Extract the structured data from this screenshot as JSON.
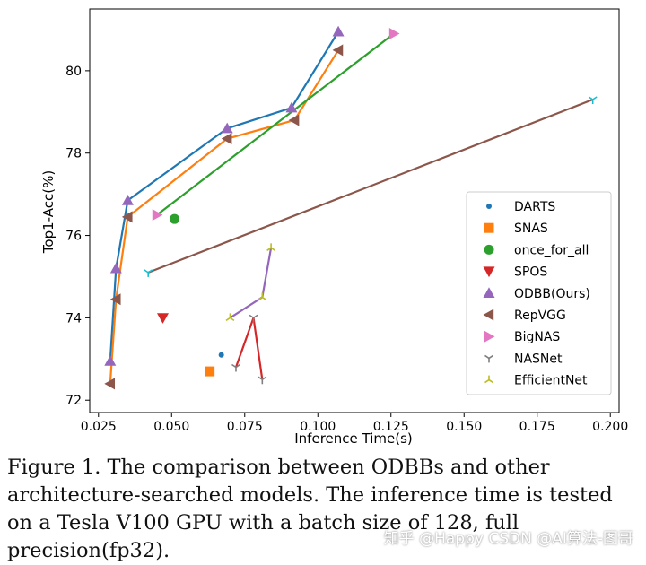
{
  "chart_data": {
    "type": "line",
    "title": "",
    "xlabel": "Inference Time(s)",
    "ylabel": "Top1-Acc(%)",
    "xlim": [
      0.022,
      0.203
    ],
    "ylim": [
      71.7,
      81.5
    ],
    "xticks": [
      0.025,
      0.05,
      0.075,
      0.1,
      0.125,
      0.15,
      0.175,
      0.2
    ],
    "xtick_labels": [
      "0.025",
      "0.050",
      "0.075",
      "0.100",
      "0.125",
      "0.150",
      "0.175",
      "0.200"
    ],
    "yticks": [
      72,
      74,
      76,
      78,
      80
    ],
    "ytick_labels": [
      "72",
      "74",
      "76",
      "78",
      "80"
    ],
    "grid": false,
    "legend_position": "bottom-right",
    "series": [
      {
        "name": "DARTS",
        "color": "#1f77b4",
        "marker": "point",
        "line": false,
        "points": [
          [
            0.067,
            73.1
          ]
        ]
      },
      {
        "name": "SNAS",
        "color": "#ff7f0e",
        "marker": "square",
        "line": false,
        "points": [
          [
            0.063,
            72.7
          ]
        ]
      },
      {
        "name": "once_for_all",
        "color": "#2ca02c",
        "marker": "circle",
        "line": false,
        "points": [
          [
            0.051,
            76.4
          ]
        ]
      },
      {
        "name": "SPOS",
        "color": "#d62728",
        "marker": "triangle_down",
        "line": false,
        "points": [
          [
            0.047,
            74.0
          ]
        ]
      },
      {
        "name": "ODBB(Ours)",
        "color": "#9467bd",
        "marker": "triangle_up",
        "line": false,
        "points": [
          [
            0.029,
            72.95
          ],
          [
            0.031,
            75.2
          ],
          [
            0.035,
            76.85
          ],
          [
            0.069,
            78.6
          ],
          [
            0.091,
            79.1
          ],
          [
            0.107,
            80.95
          ]
        ]
      },
      {
        "name": "RepVGG",
        "color": "#8c564b",
        "marker": "triangle_left",
        "line": false,
        "points": [
          [
            0.029,
            72.4
          ],
          [
            0.031,
            74.45
          ],
          [
            0.035,
            76.45
          ],
          [
            0.069,
            78.35
          ],
          [
            0.092,
            78.8
          ],
          [
            0.107,
            80.5
          ]
        ]
      },
      {
        "name": "BigNAS",
        "color": "#e377c2",
        "marker": "triangle_right",
        "line": false,
        "points": [
          [
            0.045,
            76.5
          ],
          [
            0.126,
            80.9
          ]
        ]
      },
      {
        "name": "NASNet",
        "color": "#7f7f7f",
        "marker": "tri_down",
        "line": false,
        "points": [
          [
            0.072,
            72.8
          ],
          [
            0.078,
            74.0
          ],
          [
            0.081,
            72.5
          ]
        ]
      },
      {
        "name": "EfficientNet",
        "color": "#bcbd22",
        "marker": "tri_up",
        "line": false,
        "points": [
          [
            0.07,
            74.0
          ],
          [
            0.081,
            74.5
          ],
          [
            0.084,
            75.7
          ]
        ]
      }
    ],
    "lines": [
      {
        "name": "ODBB(Ours) curve",
        "color": "#1f77b4",
        "points": [
          [
            0.029,
            72.95
          ],
          [
            0.031,
            75.2
          ],
          [
            0.035,
            76.85
          ],
          [
            0.069,
            78.6
          ],
          [
            0.091,
            79.1
          ],
          [
            0.107,
            80.95
          ]
        ]
      },
      {
        "name": "RepVGG curve",
        "color": "#ff7f0e",
        "points": [
          [
            0.029,
            72.4
          ],
          [
            0.031,
            74.45
          ],
          [
            0.035,
            76.45
          ],
          [
            0.069,
            78.35
          ],
          [
            0.092,
            78.8
          ],
          [
            0.107,
            80.5
          ]
        ]
      },
      {
        "name": "BigNAS curve",
        "color": "#2ca02c",
        "points": [
          [
            0.045,
            76.5
          ],
          [
            0.126,
            80.9
          ]
        ]
      },
      {
        "name": "SPOS curve",
        "color": "#d62728",
        "points": [
          [
            0.072,
            72.8
          ],
          [
            0.078,
            74.0
          ],
          [
            0.081,
            72.5
          ]
        ]
      },
      {
        "name": "EfficientNet curve",
        "color": "#9467bd",
        "points": [
          [
            0.07,
            74.0
          ],
          [
            0.081,
            74.5
          ],
          [
            0.084,
            75.7
          ]
        ]
      },
      {
        "name": "long-range curve",
        "color": "#8c564b",
        "points": [
          [
            0.042,
            75.1
          ],
          [
            0.194,
            79.3
          ]
        ]
      }
    ],
    "extra_markers": [
      {
        "marker": "tri_down",
        "color": "#17becf",
        "points": [
          [
            0.042,
            75.1
          ],
          [
            0.194,
            79.3
          ]
        ]
      }
    ]
  },
  "caption": {
    "text": "Figure 1. The comparison between ODBBs and other architecture-searched models.  The inference time is tested on a Tesla V100 GPU with a batch size of 128, full precision(fp32)."
  },
  "watermark": {
    "text": "知乎 @Happy CSDN @AI算法-图哥"
  }
}
